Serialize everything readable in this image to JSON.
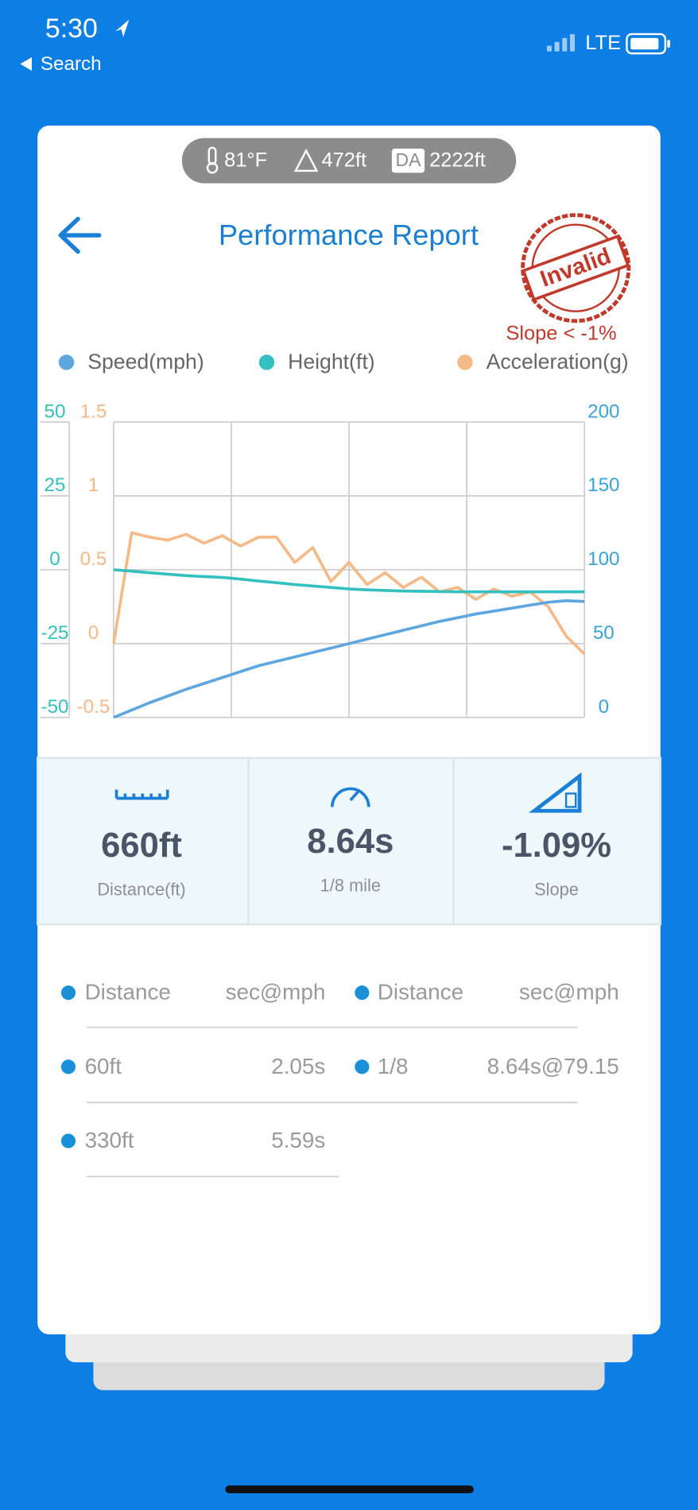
{
  "status_bar": {
    "time": "5:30",
    "back": "Search",
    "network": "LTE"
  },
  "conditions": {
    "temperature": "81°F",
    "elevation": "472ft",
    "da_label": "DA",
    "density_altitude": "2222ft"
  },
  "header": {
    "title": "Performance Report",
    "stamp": "Invalid",
    "stamp_note": "Slope < -1%"
  },
  "chart_data": {
    "type": "line",
    "legend": "top",
    "grid": true,
    "ylim": [
      -50,
      50
    ],
    "yticks": [
      50,
      25,
      0,
      -25,
      -50
    ],
    "y3lim": [
      -0.5,
      1.5
    ],
    "y3ticks": [
      1.5,
      1,
      0.5,
      0,
      -0.5
    ],
    "y2lim": [
      0,
      200
    ],
    "y2ticks": [
      200,
      150,
      100,
      50,
      0
    ],
    "series": [
      {
        "name": "Speed(mph)",
        "color": "#5ea6e0",
        "axis": "y2",
        "values": [
          0,
          5,
          10,
          14.5,
          19,
          23,
          27,
          31,
          35,
          38,
          41,
          44,
          47,
          50,
          53,
          56,
          59,
          62,
          65,
          67.5,
          70,
          72,
          74,
          76,
          78,
          79,
          78.5
        ]
      },
      {
        "name": "Height(ft)",
        "color": "#33c0bf",
        "values": [
          0,
          -0.5,
          -1,
          -1.5,
          -2,
          -2.3,
          -2.6,
          -3.2,
          -3.8,
          -4.4,
          -5,
          -5.5,
          -6,
          -6.5,
          -6.8,
          -7,
          -7.2,
          -7.3,
          -7.4,
          -7.5,
          -7.5,
          -7.5,
          -7.5,
          -7.5,
          -7.5,
          -7.5,
          -7.5
        ]
      },
      {
        "name": "Acceleration(g)",
        "color": "#f5b887",
        "axis": "y3",
        "values": [
          0,
          0.75,
          0.72,
          0.7,
          0.74,
          0.68,
          0.73,
          0.66,
          0.72,
          0.72,
          0.55,
          0.65,
          0.42,
          0.55,
          0.4,
          0.48,
          0.38,
          0.45,
          0.35,
          0.38,
          0.3,
          0.37,
          0.32,
          0.35,
          0.25,
          0.05,
          -0.07
        ]
      }
    ]
  },
  "stats": [
    {
      "value": "660ft",
      "label": "Distance(ft)"
    },
    {
      "value": "8.64s",
      "label": "1/8 mile"
    },
    {
      "value": "-1.09%",
      "label": "Slope"
    }
  ],
  "table": {
    "columns": [
      "Distance",
      "sec@mph",
      "Distance",
      "sec@mph"
    ],
    "rows": [
      [
        "60ft",
        "2.05s",
        "1/8",
        "8.64s@79.15"
      ],
      [
        "330ft",
        "5.59s"
      ]
    ]
  }
}
